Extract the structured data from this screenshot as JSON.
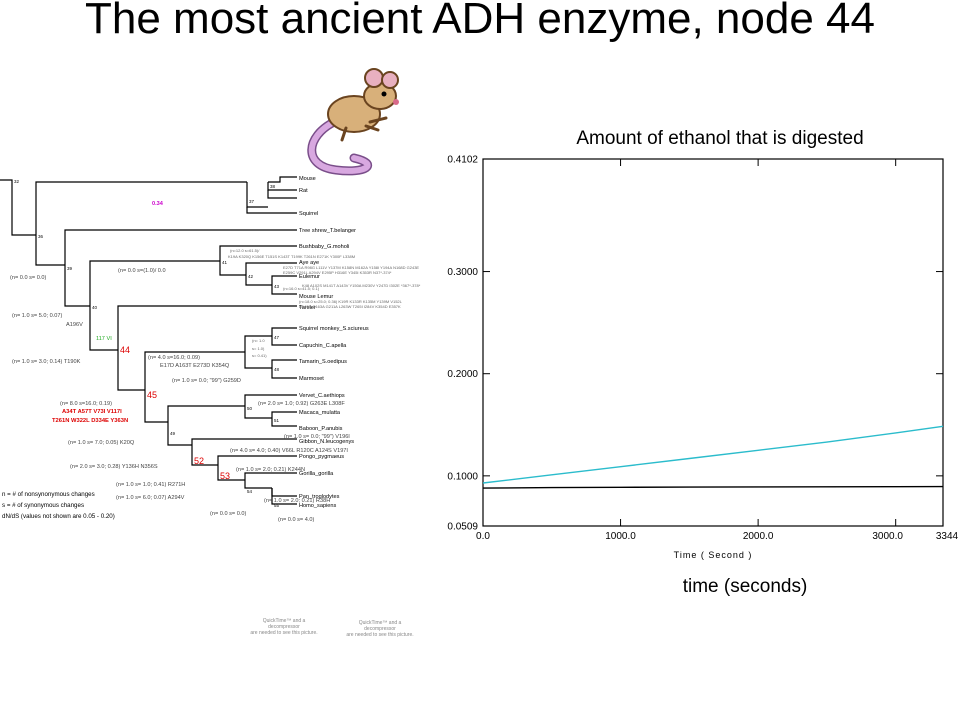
{
  "slide": {
    "title": "The most ancient ADH enzyme, node 44"
  },
  "captions": {
    "chart_title": "Amount of ethanol that is digested",
    "x_caption": "time (seconds)"
  },
  "colors": {
    "series_cyan": "#2bbccc",
    "series_black": "#000000",
    "tree_magenta": "#cc00cc",
    "tree_red": "#dd0000",
    "tree_green": "#22aa22",
    "mouse_body": "#d8b07a",
    "mouse_tail": "#d8a8e0"
  },
  "icons": {
    "mouse": "cartoon-mouse-icon"
  },
  "tree": {
    "taxa": [
      "Mouse",
      "Rat",
      "Squirrel",
      "Tree shrew_T.belanger",
      "Bushbaby_G.moholi",
      "Aye aye",
      "Eulemur",
      "Mouse Lemur",
      "Tarsier",
      "Squirrel monkey_S.sciureus",
      "Capuchin_C.apella",
      "Tamarin_S.oedipus",
      "Marmoset",
      "Vervet_C.aethiops",
      "Macaca_mulatta",
      "Baboon_P.anubis",
      "Gibbon_N.leucogenys",
      "Pongo_pygmaeus",
      "Gorilla_gorilla",
      "Pan_troglodytes",
      "Homo_sapiens"
    ],
    "nodes": [
      "32",
      "36",
      "37",
      "38",
      "39",
      "40",
      "41",
      "42",
      "43",
      "44",
      "45",
      "47",
      "48",
      "49",
      "50",
      "51",
      "52",
      "53",
      "54",
      "55"
    ],
    "annotations": {
      "a034": "0.34",
      "a00": "(n= 0.0 s= 0.0)",
      "a00b": "(n= 0.0 s=(1.0)/ 0.0",
      "a105": "(n= 1.0 s= 5.0; 0.07)",
      "a196": "A196V",
      "a130": "(n= 1.0 s= 3.0; 0.14) T190K",
      "a117": "117 VI",
      "a4016": "(n= 4.0 s=16.0; 0.09)",
      "a4016m": "E17D A163T E273D K354Q",
      "a10b": "(n= 1.0 s= 0.0; \"99\") G259D",
      "a8016": "(n= 8.0 s=16.0; 0.19)",
      "red1": "A34T A57T V73I V117I",
      "red2": "T261N W322L D334E Y363N",
      "a2010": "(n= 2.0 s= 1.0; 0.92) G263E L308F",
      "a7005": "(n= 1.0 s= 7.0; 0.05) K20Q",
      "a1099": "(n= 1.0 s= 0.0; \"99\") V196I",
      "a2028": "(n= 2.0 s= 3.0; 0.28) Y136H N356S",
      "a4004": "(n= 4.0 s= 4.0; 0.40) V66L R120C A124S V197I",
      "a1021": "(n= 1.0 s= 2.0; 0.21) K244N",
      "a1041": "(n= 1.0 s= 1.0; 0.41) R271H",
      "a6007": "(n= 1.0 s= 6.0; 0.07) A294V",
      "a1021b": "(n= 1.0 s= 2.0; 0.21) R38H",
      "a00c": "(n= 0.0 s= 0.0)",
      "a040": "(n= 0.0 s= 4.0)",
      "tiny1": "(n=12.0 s=61.5)/",
      "tiny2": "K19A K320Q K156E T151S K143T T199K T261N E271K Y300F L338M",
      "tiny3": "E27D T71A R98G L111V Y137M K158N M162A Y158I Y194A N168D G243E",
      "tiny4": "E259C V291L A294V E295P H316E Y345I K353R N37*-374*",
      "tiny5": "(n=16.0 s=41.5; 0.1)",
      "tiny6": "K48 A102S M141T A143V Y150A M230V Y247D I302E *367*-378*",
      "tiny7": "(n=18.0 s=25.0; 0.36) K19R K133R K135M Y139M V152L",
      "tiny8": "D142E G163A G211A L263W T265I I284V K354D E357K",
      "tiny9": "(n= 1.0",
      "tiny10": "s= 1.0)",
      "tiny11": "s= 0.41)"
    },
    "legend": [
      "n = # of nonsynonymous changes",
      "s = # of synonymous changes",
      "dN/dS (values not shown are 0.05 - 0.20)"
    ]
  },
  "quicktime": [
    "QuickTime™ and a",
    "decompressor",
    "are needed to see this picture."
  ],
  "chart_data": {
    "type": "line",
    "title": "Amount of ethanol that is digested",
    "xlabel": "Time ( Second )",
    "ylabel": "",
    "xlim": [
      0.0,
      3344
    ],
    "ylim": [
      0.0509,
      0.4102
    ],
    "x_ticks": [
      "0.0",
      "1000.0",
      "2000.0",
      "3000.0",
      "3344"
    ],
    "y_ticks": [
      "0.0509",
      "0.1000",
      "0.2000",
      "0.3000",
      "0.4102"
    ],
    "grid": false,
    "legend": "none",
    "series": [
      {
        "color": "#2bbccc",
        "x": [
          0,
          500,
          1000,
          1500,
          2000,
          2500,
          3000,
          3344
        ],
        "y": [
          0.093,
          0.101,
          0.109,
          0.117,
          0.125,
          0.133,
          0.142,
          0.1485
        ]
      },
      {
        "color": "#000000",
        "x": [
          0,
          500,
          1000,
          1500,
          2000,
          2500,
          3000,
          3344
        ],
        "y": [
          0.088,
          0.0885,
          0.0888,
          0.089,
          0.0892,
          0.0893,
          0.0894,
          0.0895
        ]
      }
    ]
  }
}
